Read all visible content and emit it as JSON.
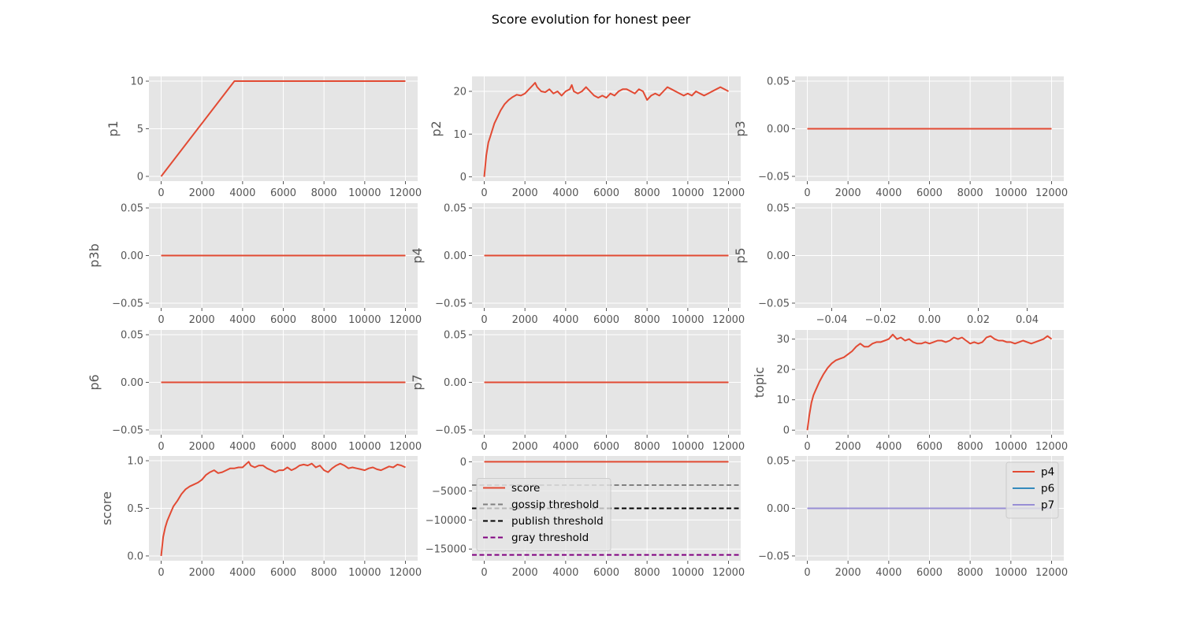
{
  "title": "Score evolution for honest peer",
  "colors": {
    "panel_bg": "#e5e5e5",
    "grid": "#ffffff",
    "score_line": "#e24a33",
    "p6_line": "#348abd",
    "p7_line": "#988ed5",
    "gossip": "#808080",
    "publish": "#000000",
    "gray": "#800080"
  },
  "chart_data": [
    {
      "type": "line",
      "ylabel": "p1",
      "xlim": [
        -600,
        12600
      ],
      "ylim": [
        -0.5,
        10.5
      ],
      "xticks": [
        0,
        2000,
        4000,
        6000,
        8000,
        10000,
        12000
      ],
      "yticks": [
        0,
        5,
        10
      ],
      "ytick_labels": [
        "0",
        "5",
        "10"
      ],
      "series": [
        {
          "color": "#e24a33",
          "x": [
            0,
            3600,
            12000
          ],
          "y": [
            0,
            10,
            10
          ]
        }
      ]
    },
    {
      "type": "line",
      "ylabel": "p2",
      "xlim": [
        -600,
        12600
      ],
      "ylim": [
        -1,
        23.5
      ],
      "xticks": [
        0,
        2000,
        4000,
        6000,
        8000,
        10000,
        12000
      ],
      "yticks": [
        0,
        10,
        20
      ],
      "ytick_labels": [
        "0",
        "10",
        "20"
      ],
      "series": [
        {
          "color": "#e24a33",
          "x": [
            0,
            100,
            200,
            300,
            400,
            500,
            600,
            800,
            1000,
            1200,
            1400,
            1600,
            1800,
            2000,
            2200,
            2400,
            2500,
            2600,
            2800,
            3000,
            3200,
            3400,
            3600,
            3800,
            4000,
            4200,
            4300,
            4400,
            4600,
            4800,
            5000,
            5200,
            5400,
            5600,
            5800,
            6000,
            6200,
            6400,
            6600,
            6800,
            7000,
            7200,
            7400,
            7600,
            7800,
            8000,
            8200,
            8400,
            8600,
            8800,
            9000,
            9200,
            9400,
            9600,
            9800,
            10000,
            10200,
            10400,
            10600,
            10800,
            11000,
            11200,
            11400,
            11600,
            11800,
            12000
          ],
          "y": [
            0,
            5,
            8,
            9.5,
            11,
            12.5,
            13.5,
            15.5,
            17,
            18,
            18.7,
            19.2,
            19,
            19.5,
            20.5,
            21.5,
            22,
            21,
            20,
            19.8,
            20.5,
            19.5,
            20,
            19,
            20,
            20.5,
            21.5,
            20,
            19.5,
            20,
            21,
            20,
            19,
            18.5,
            19,
            18.5,
            19.5,
            19,
            20,
            20.5,
            20.5,
            20,
            19.5,
            20.5,
            20,
            18,
            19,
            19.5,
            19,
            20,
            21,
            20.5,
            20,
            19.5,
            19,
            19.5,
            19,
            20,
            19.5,
            19,
            19.5,
            20,
            20.5,
            21,
            20.5,
            20
          ]
        }
      ]
    },
    {
      "type": "line",
      "ylabel": "p3",
      "xlim": [
        -600,
        12600
      ],
      "ylim": [
        -0.055,
        0.055
      ],
      "xticks": [
        0,
        2000,
        4000,
        6000,
        8000,
        10000,
        12000
      ],
      "yticks": [
        -0.05,
        0,
        0.05
      ],
      "ytick_labels": [
        "−0.05",
        "0.00",
        "0.05"
      ],
      "series": [
        {
          "color": "#e24a33",
          "x": [
            0,
            12000
          ],
          "y": [
            0,
            0
          ]
        }
      ]
    },
    {
      "type": "line",
      "ylabel": "p3b",
      "xlim": [
        -600,
        12600
      ],
      "ylim": [
        -0.055,
        0.055
      ],
      "xticks": [
        0,
        2000,
        4000,
        6000,
        8000,
        10000,
        12000
      ],
      "yticks": [
        -0.05,
        0,
        0.05
      ],
      "ytick_labels": [
        "−0.05",
        "0.00",
        "0.05"
      ],
      "series": [
        {
          "color": "#e24a33",
          "x": [
            0,
            12000
          ],
          "y": [
            0,
            0
          ]
        }
      ]
    },
    {
      "type": "line",
      "ylabel": "p4",
      "xlim": [
        -600,
        12600
      ],
      "ylim": [
        -0.055,
        0.055
      ],
      "xticks": [
        0,
        2000,
        4000,
        6000,
        8000,
        10000,
        12000
      ],
      "yticks": [
        -0.05,
        0,
        0.05
      ],
      "ytick_labels": [
        "−0.05",
        "0.00",
        "0.05"
      ],
      "series": [
        {
          "color": "#e24a33",
          "x": [
            0,
            12000
          ],
          "y": [
            0,
            0
          ]
        }
      ]
    },
    {
      "type": "line",
      "ylabel": "p5",
      "xlim": [
        -0.055,
        0.055
      ],
      "ylim": [
        -0.055,
        0.055
      ],
      "xticks": [
        -0.04,
        -0.02,
        0,
        0.02,
        0.04
      ],
      "xtick_labels": [
        "−0.04",
        "−0.02",
        "0.00",
        "0.02",
        "0.04"
      ],
      "yticks": [
        -0.05,
        0,
        0.05
      ],
      "ytick_labels": [
        "−0.05",
        "0.00",
        "0.05"
      ],
      "series": []
    },
    {
      "type": "line",
      "ylabel": "p6",
      "xlim": [
        -600,
        12600
      ],
      "ylim": [
        -0.055,
        0.055
      ],
      "xticks": [
        0,
        2000,
        4000,
        6000,
        8000,
        10000,
        12000
      ],
      "yticks": [
        -0.05,
        0,
        0.05
      ],
      "ytick_labels": [
        "−0.05",
        "0.00",
        "0.05"
      ],
      "series": [
        {
          "color": "#e24a33",
          "x": [
            0,
            12000
          ],
          "y": [
            0,
            0
          ]
        }
      ]
    },
    {
      "type": "line",
      "ylabel": "p7",
      "xlim": [
        -600,
        12600
      ],
      "ylim": [
        -0.055,
        0.055
      ],
      "xticks": [
        0,
        2000,
        4000,
        6000,
        8000,
        10000,
        12000
      ],
      "yticks": [
        -0.05,
        0,
        0.05
      ],
      "ytick_labels": [
        "−0.05",
        "0.00",
        "0.05"
      ],
      "series": [
        {
          "color": "#e24a33",
          "x": [
            0,
            12000
          ],
          "y": [
            0,
            0
          ]
        }
      ]
    },
    {
      "type": "line",
      "ylabel": "topic",
      "xlim": [
        -600,
        12600
      ],
      "ylim": [
        -1.5,
        33
      ],
      "xticks": [
        0,
        2000,
        4000,
        6000,
        8000,
        10000,
        12000
      ],
      "yticks": [
        0,
        10,
        20,
        30
      ],
      "ytick_labels": [
        "0",
        "10",
        "20",
        "30"
      ],
      "series": [
        {
          "color": "#e24a33",
          "x": [
            0,
            100,
            200,
            300,
            400,
            500,
            600,
            800,
            1000,
            1200,
            1400,
            1600,
            1800,
            2000,
            2200,
            2400,
            2600,
            2800,
            3000,
            3200,
            3400,
            3600,
            3800,
            4000,
            4200,
            4400,
            4600,
            4800,
            5000,
            5200,
            5400,
            5600,
            5800,
            6000,
            6200,
            6400,
            6600,
            6800,
            7000,
            7200,
            7400,
            7600,
            7800,
            8000,
            8200,
            8400,
            8600,
            8800,
            9000,
            9200,
            9400,
            9600,
            9800,
            10000,
            10200,
            10400,
            10600,
            10800,
            11000,
            11200,
            11400,
            11600,
            11800,
            12000
          ],
          "y": [
            0,
            5,
            9,
            11.5,
            13,
            14.5,
            16,
            18.5,
            20.5,
            22,
            23,
            23.5,
            24,
            25,
            26,
            27.5,
            28.5,
            27.5,
            27.5,
            28.5,
            29,
            29,
            29.5,
            30,
            31.5,
            30,
            30.5,
            29.5,
            30,
            29,
            28.5,
            28.5,
            29,
            28.5,
            29,
            29.5,
            29.5,
            29,
            29.5,
            30.5,
            30,
            30.5,
            29.5,
            28.5,
            29,
            28.5,
            29,
            30.5,
            31,
            30,
            29.5,
            29.5,
            29,
            29,
            28.5,
            29,
            29.5,
            29,
            28.5,
            29,
            29.5,
            30,
            31,
            30
          ]
        }
      ]
    },
    {
      "type": "line",
      "ylabel": "score",
      "xlim": [
        -600,
        12600
      ],
      "ylim": [
        -0.05,
        1.05
      ],
      "xticks": [
        0,
        2000,
        4000,
        6000,
        8000,
        10000,
        12000
      ],
      "yticks": [
        0,
        0.5,
        1
      ],
      "ytick_labels": [
        "0.0",
        "0.5",
        "1.0"
      ],
      "series": [
        {
          "color": "#e24a33",
          "x": [
            0,
            100,
            200,
            300,
            400,
            500,
            600,
            800,
            1000,
            1200,
            1400,
            1600,
            1800,
            2000,
            2200,
            2400,
            2600,
            2800,
            3000,
            3200,
            3400,
            3600,
            3800,
            4000,
            4200,
            4300,
            4400,
            4600,
            4800,
            5000,
            5200,
            5400,
            5600,
            5800,
            6000,
            6200,
            6400,
            6600,
            6800,
            7000,
            7200,
            7400,
            7600,
            7800,
            8000,
            8200,
            8400,
            8600,
            8800,
            9000,
            9200,
            9400,
            9600,
            9800,
            10000,
            10200,
            10400,
            10600,
            10800,
            11000,
            11200,
            11400,
            11600,
            11800,
            12000
          ],
          "y": [
            0,
            0.2,
            0.3,
            0.37,
            0.42,
            0.47,
            0.52,
            0.58,
            0.65,
            0.7,
            0.73,
            0.75,
            0.77,
            0.8,
            0.85,
            0.88,
            0.9,
            0.87,
            0.88,
            0.9,
            0.92,
            0.92,
            0.93,
            0.93,
            0.97,
            0.99,
            0.95,
            0.93,
            0.95,
            0.95,
            0.92,
            0.9,
            0.88,
            0.9,
            0.9,
            0.93,
            0.9,
            0.92,
            0.95,
            0.96,
            0.95,
            0.97,
            0.93,
            0.95,
            0.9,
            0.88,
            0.92,
            0.95,
            0.97,
            0.95,
            0.92,
            0.93,
            0.92,
            0.91,
            0.9,
            0.92,
            0.93,
            0.91,
            0.9,
            0.92,
            0.94,
            0.93,
            0.96,
            0.95,
            0.93
          ]
        }
      ]
    },
    {
      "type": "line",
      "ylabel": "",
      "xlim": [
        -600,
        12600
      ],
      "ylim": [
        -17000,
        1000
      ],
      "xticks": [
        0,
        2000,
        4000,
        6000,
        8000,
        10000,
        12000
      ],
      "yticks": [
        -15000,
        -10000,
        -5000,
        0
      ],
      "ytick_labels": [
        "−15000",
        "−10000",
        "−5000",
        "0"
      ],
      "series": [
        {
          "name": "score",
          "color": "#e24a33",
          "x": [
            0,
            12000
          ],
          "y": [
            0,
            0
          ]
        }
      ],
      "hlines": [
        {
          "name": "gossip threshold",
          "y": -4000,
          "color": "#808080"
        },
        {
          "name": "publish threshold",
          "y": -8000,
          "color": "#000000"
        },
        {
          "name": "gray threshold",
          "y": -16000,
          "color": "#800080"
        }
      ],
      "legend": {
        "position": "center-left",
        "entries": [
          {
            "label": "score",
            "color": "#e24a33",
            "dashed": false
          },
          {
            "label": "gossip threshold",
            "color": "#808080",
            "dashed": true
          },
          {
            "label": "publish threshold",
            "color": "#000000",
            "dashed": true
          },
          {
            "label": "gray threshold",
            "color": "#800080",
            "dashed": true
          }
        ]
      }
    },
    {
      "type": "line",
      "ylabel": "",
      "xlim": [
        -600,
        12600
      ],
      "ylim": [
        -0.055,
        0.055
      ],
      "xticks": [
        0,
        2000,
        4000,
        6000,
        8000,
        10000,
        12000
      ],
      "yticks": [
        -0.05,
        0,
        0.05
      ],
      "ytick_labels": [
        "−0.05",
        "0.00",
        "0.05"
      ],
      "series": [
        {
          "name": "p4",
          "color": "#e24a33",
          "x": [
            0,
            12000
          ],
          "y": [
            0,
            0
          ]
        },
        {
          "name": "p6",
          "color": "#348abd",
          "x": [
            0,
            12000
          ],
          "y": [
            0,
            0
          ]
        },
        {
          "name": "p7",
          "color": "#988ed5",
          "x": [
            0,
            12000
          ],
          "y": [
            0,
            0
          ]
        }
      ],
      "legend": {
        "position": "upper-right",
        "entries": [
          {
            "label": "p4",
            "color": "#e24a33",
            "dashed": false
          },
          {
            "label": "p6",
            "color": "#348abd",
            "dashed": false
          },
          {
            "label": "p7",
            "color": "#988ed5",
            "dashed": false
          }
        ]
      }
    }
  ]
}
